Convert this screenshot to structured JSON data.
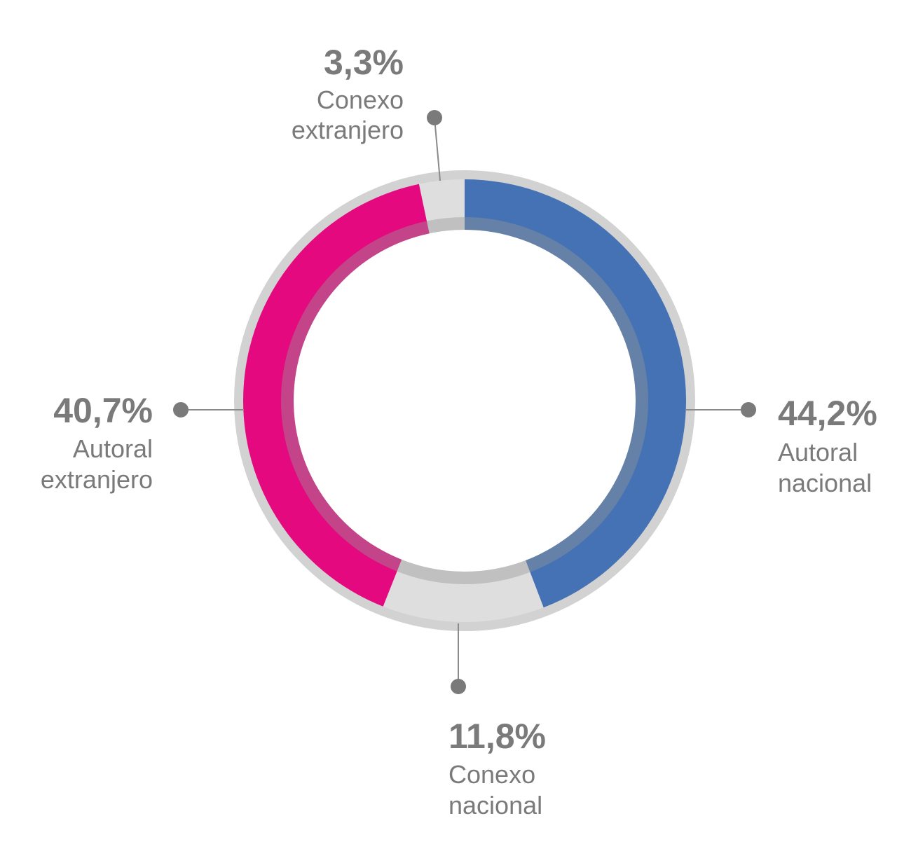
{
  "chart_data": {
    "type": "pie",
    "title": "",
    "categories": [
      "Autoral nacional",
      "Conexo nacional",
      "Autoral extranjero",
      "Conexo extranjero"
    ],
    "values": [
      44.2,
      11.8,
      40.7,
      3.3
    ],
    "unit": "%",
    "colors": [
      "#4472b4",
      "#dedede",
      "#e4097f",
      "#dedede"
    ],
    "labels": [
      {
        "pct": "44,2%",
        "line1": "Autoral",
        "line2": "nacional"
      },
      {
        "pct": "11,8%",
        "line1": "Conexo",
        "line2": "nacional"
      },
      {
        "pct": "40,7%",
        "line1": "Autoral",
        "line2": "extranjero"
      },
      {
        "pct": "3,3%",
        "line1": "Conexo",
        "line2": "extranjero"
      }
    ]
  }
}
